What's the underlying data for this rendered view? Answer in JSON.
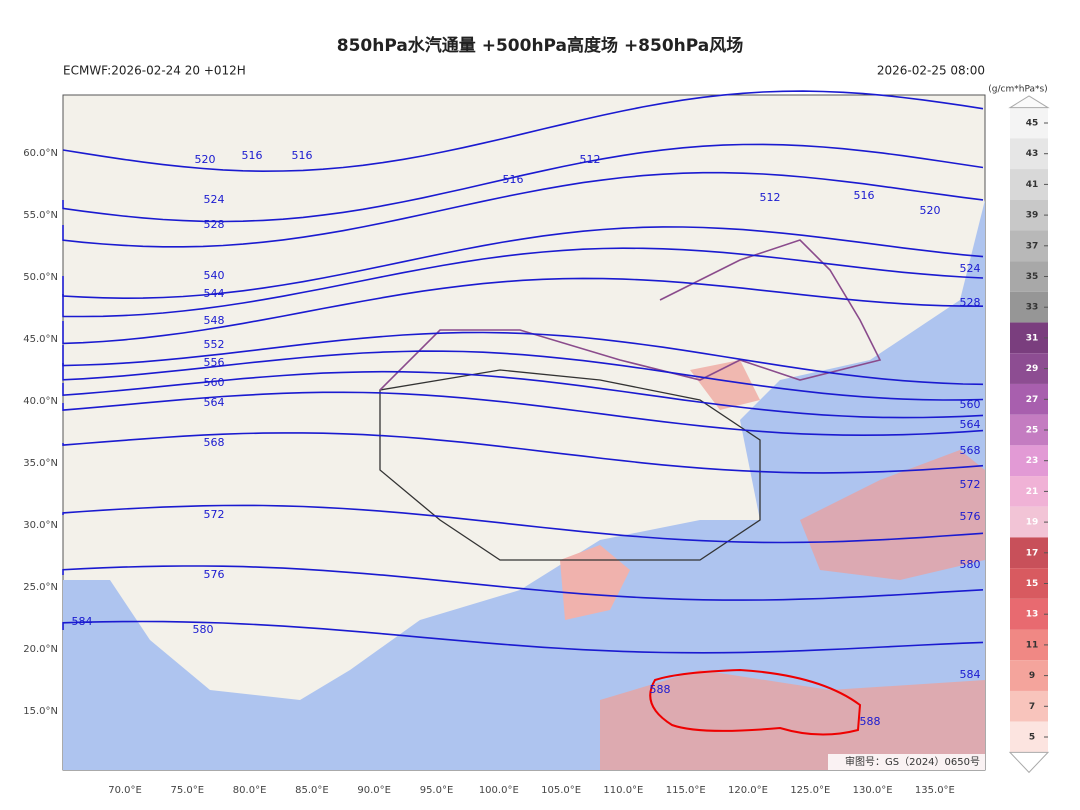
{
  "header": {
    "title": "850hPa水汽通量 +500hPa高度场 +850hPa风场",
    "run": "ECMWF:2026-02-24 20 +012H",
    "valid": "2026-02-25 08:00"
  },
  "colorbar": {
    "unit": "(g/cm*hPa*s)",
    "ticks": [
      45,
      43,
      41,
      39,
      37,
      35,
      33,
      31,
      29,
      27,
      25,
      23,
      21,
      19,
      17,
      15,
      13,
      11,
      9,
      7,
      5
    ]
  },
  "map": {
    "lat_labels": [
      "60.0°N",
      "55.0°N",
      "50.0°N",
      "45.0°N",
      "40.0°N",
      "35.0°N",
      "30.0°N",
      "25.0°N",
      "20.0°N",
      "15.0°N"
    ],
    "lon_labels": [
      "70.0°E",
      "75.0°E",
      "80.0°E",
      "85.0°E",
      "90.0°E",
      "95.0°E",
      "100.0°E",
      "105.0°E",
      "110.0°E",
      "115.0°E",
      "120.0°E",
      "125.0°E",
      "130.0°E",
      "135.0°E"
    ],
    "contour_labels": [
      "520",
      "516",
      "516",
      "512",
      "516",
      "512",
      "516",
      "520",
      "524",
      "528",
      "540",
      "544",
      "548",
      "552",
      "556",
      "560",
      "564",
      "568",
      "572",
      "576",
      "580",
      "584",
      "524",
      "528",
      "560",
      "564",
      "568",
      "572",
      "576",
      "580",
      "584",
      "588",
      "588"
    ],
    "footer": "审图号：GS（2024）0650号"
  }
}
